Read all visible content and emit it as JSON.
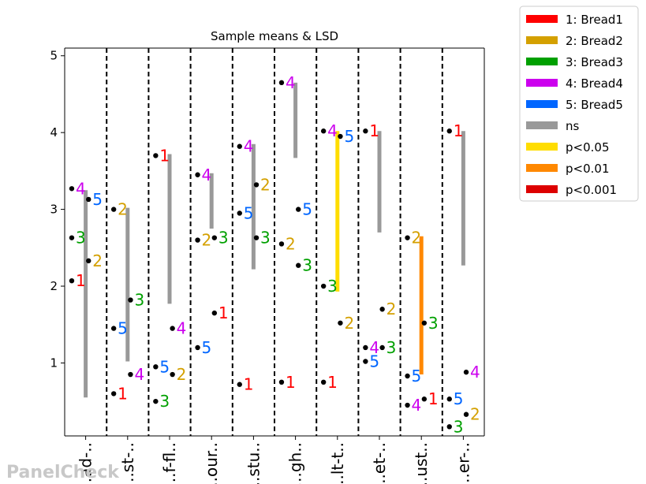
{
  "chart_data": {
    "type": "scatter",
    "title": "Sample means & LSD",
    "ylim": [
      0.05,
      5.1
    ],
    "yticks": [
      1,
      2,
      3,
      4,
      5
    ],
    "categories": [
      "...ad-..",
      "...st-..",
      "...f-fl..",
      "...our..",
      "...stu..",
      "...gh..",
      "...lt-t..",
      "...et-..",
      "...ust..",
      "...er-.."
    ],
    "products": [
      {
        "id": "1",
        "name": "Bread1",
        "color": "#ff0000"
      },
      {
        "id": "2",
        "name": "Bread2",
        "color": "#d4a000"
      },
      {
        "id": "3",
        "name": "Bread3",
        "color": "#00a000"
      },
      {
        "id": "4",
        "name": "Bread4",
        "color": "#cc00ee"
      },
      {
        "id": "5",
        "name": "Bread5",
        "color": "#0066ff"
      }
    ],
    "means": [
      [
        2.07,
        2.33,
        2.63,
        3.27,
        3.13
      ],
      [
        0.6,
        3.0,
        1.82,
        0.85,
        1.45
      ],
      [
        3.7,
        0.85,
        0.5,
        1.45,
        0.95
      ],
      [
        1.65,
        2.6,
        2.63,
        3.45,
        1.2
      ],
      [
        0.72,
        3.32,
        2.63,
        3.82,
        2.95
      ],
      [
        0.75,
        2.55,
        2.27,
        4.65,
        3.0
      ],
      [
        0.75,
        1.52,
        2.0,
        4.02,
        3.95
      ],
      [
        4.02,
        1.7,
        1.2,
        1.2,
        1.02
      ],
      [
        0.53,
        2.63,
        1.52,
        0.45,
        0.83
      ],
      [
        4.02,
        0.33,
        0.17,
        0.88,
        0.53
      ]
    ],
    "lsd_bars": [
      {
        "low": 0.55,
        "high": 3.25,
        "significance": "ns"
      },
      {
        "low": 1.02,
        "high": 3.02,
        "significance": "ns"
      },
      {
        "low": 1.77,
        "high": 3.72,
        "significance": "ns"
      },
      {
        "low": 2.75,
        "high": 3.47,
        "significance": "ns"
      },
      {
        "low": 2.22,
        "high": 3.85,
        "significance": "ns"
      },
      {
        "low": 3.67,
        "high": 4.65,
        "significance": "ns"
      },
      {
        "low": 1.93,
        "high": 4.02,
        "significance": "p<0.05"
      },
      {
        "low": 2.7,
        "high": 4.02,
        "significance": "ns"
      },
      {
        "low": 0.85,
        "high": 2.65,
        "significance": "p<0.01"
      },
      {
        "low": 2.27,
        "high": 4.02,
        "significance": "ns"
      }
    ],
    "legend": [
      {
        "label": "1: Bread1",
        "color": "#ff0000"
      },
      {
        "label": "2: Bread2",
        "color": "#d4a000"
      },
      {
        "label": "3: Bread3",
        "color": "#00a000"
      },
      {
        "label": "4: Bread4",
        "color": "#cc00ee"
      },
      {
        "label": "5: Bread5",
        "color": "#0066ff"
      },
      {
        "label": "ns",
        "color": "#999999"
      },
      {
        "label": "p<0.05",
        "color": "#ffdd00"
      },
      {
        "label": "p<0.01",
        "color": "#ff8800"
      },
      {
        "label": "p<0.001",
        "color": "#dd0000"
      }
    ],
    "significance_colors": {
      "ns": "#999999",
      "p<0.05": "#ffdd00",
      "p<0.01": "#ff8800",
      "p<0.001": "#dd0000"
    },
    "grid": false,
    "legend_position": "outside top-right"
  },
  "watermark": "PanelCheck"
}
